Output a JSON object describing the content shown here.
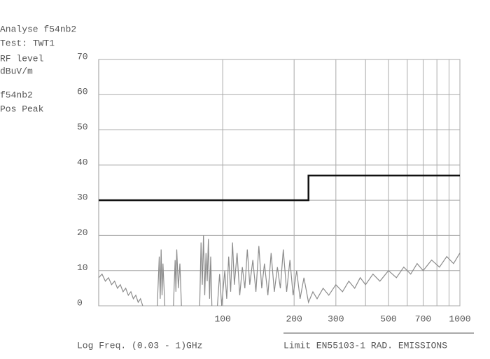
{
  "header": {
    "lines": [
      "Analyse f54nb2",
      "Test: TWT1",
      "RF level",
      "dBuV/m",
      "f54nb2",
      "Pos Peak"
    ]
  },
  "chart_data": {
    "type": "line",
    "xscale": "log",
    "xlabel": "Log Freq. (0.03 -  1)GHz",
    "limit_label": "Limit EN55103-1 RAD. EMISSIONS",
    "xlim": [
      30,
      1000
    ],
    "ylim": [
      0,
      70
    ],
    "xticks": [
      100,
      200,
      300,
      500,
      700,
      1000
    ],
    "x_minor_ticks": [
      400,
      600,
      800,
      900
    ],
    "yticks": [
      0,
      10,
      20,
      30,
      40,
      50,
      60,
      70
    ],
    "grid": true,
    "series": [
      {
        "name": "f54nb2",
        "color": "#8c8c8c",
        "x": [
          30,
          31,
          32,
          33,
          34,
          35,
          36,
          37,
          38,
          39,
          40,
          41,
          42,
          43,
          44,
          45,
          46,
          48,
          53,
          54,
          54.5,
          55,
          55.5,
          56,
          57,
          60,
          62,
          63,
          63.5,
          64,
          65,
          66,
          67,
          75,
          80,
          81,
          82,
          83,
          84,
          85,
          86,
          87,
          88,
          89,
          90,
          93,
          95,
          97,
          99,
          102,
          104,
          106,
          108,
          110,
          112,
          115,
          118,
          121,
          124,
          127,
          130,
          134,
          138,
          142,
          146,
          150,
          155,
          160,
          165,
          170,
          175,
          180,
          186,
          192,
          198,
          205,
          212,
          220,
          230,
          240,
          250,
          265,
          280,
          300,
          320,
          340,
          360,
          380,
          400,
          430,
          460,
          500,
          540,
          580,
          620,
          660,
          700,
          760,
          820,
          880,
          940,
          1000
        ],
        "values": [
          8,
          9,
          7,
          8,
          6,
          7,
          5,
          6,
          4,
          5,
          3,
          4,
          2,
          3,
          1,
          2,
          0,
          null,
          0,
          14,
          2,
          16,
          3,
          12,
          0,
          null,
          0,
          13,
          4,
          16,
          5,
          12,
          0,
          null,
          0,
          18,
          6,
          20,
          3,
          15,
          7,
          19,
          2,
          14,
          0,
          null,
          0,
          9,
          0,
          10,
          2,
          14,
          4,
          18,
          6,
          15,
          3,
          11,
          5,
          16,
          6,
          13,
          4,
          17,
          5,
          12,
          3,
          15,
          4,
          11,
          5,
          16,
          4,
          13,
          3,
          10,
          2,
          8,
          1,
          4,
          2,
          5,
          3,
          6,
          4,
          7,
          5,
          8,
          6,
          9,
          7,
          10,
          8,
          11,
          9,
          12,
          10,
          13,
          11,
          14,
          12,
          15
        ]
      },
      {
        "name": "Limit",
        "color": "#111111",
        "x": [
          30,
          230,
          230,
          1000
        ],
        "values": [
          30,
          30,
          37,
          37
        ]
      }
    ]
  }
}
